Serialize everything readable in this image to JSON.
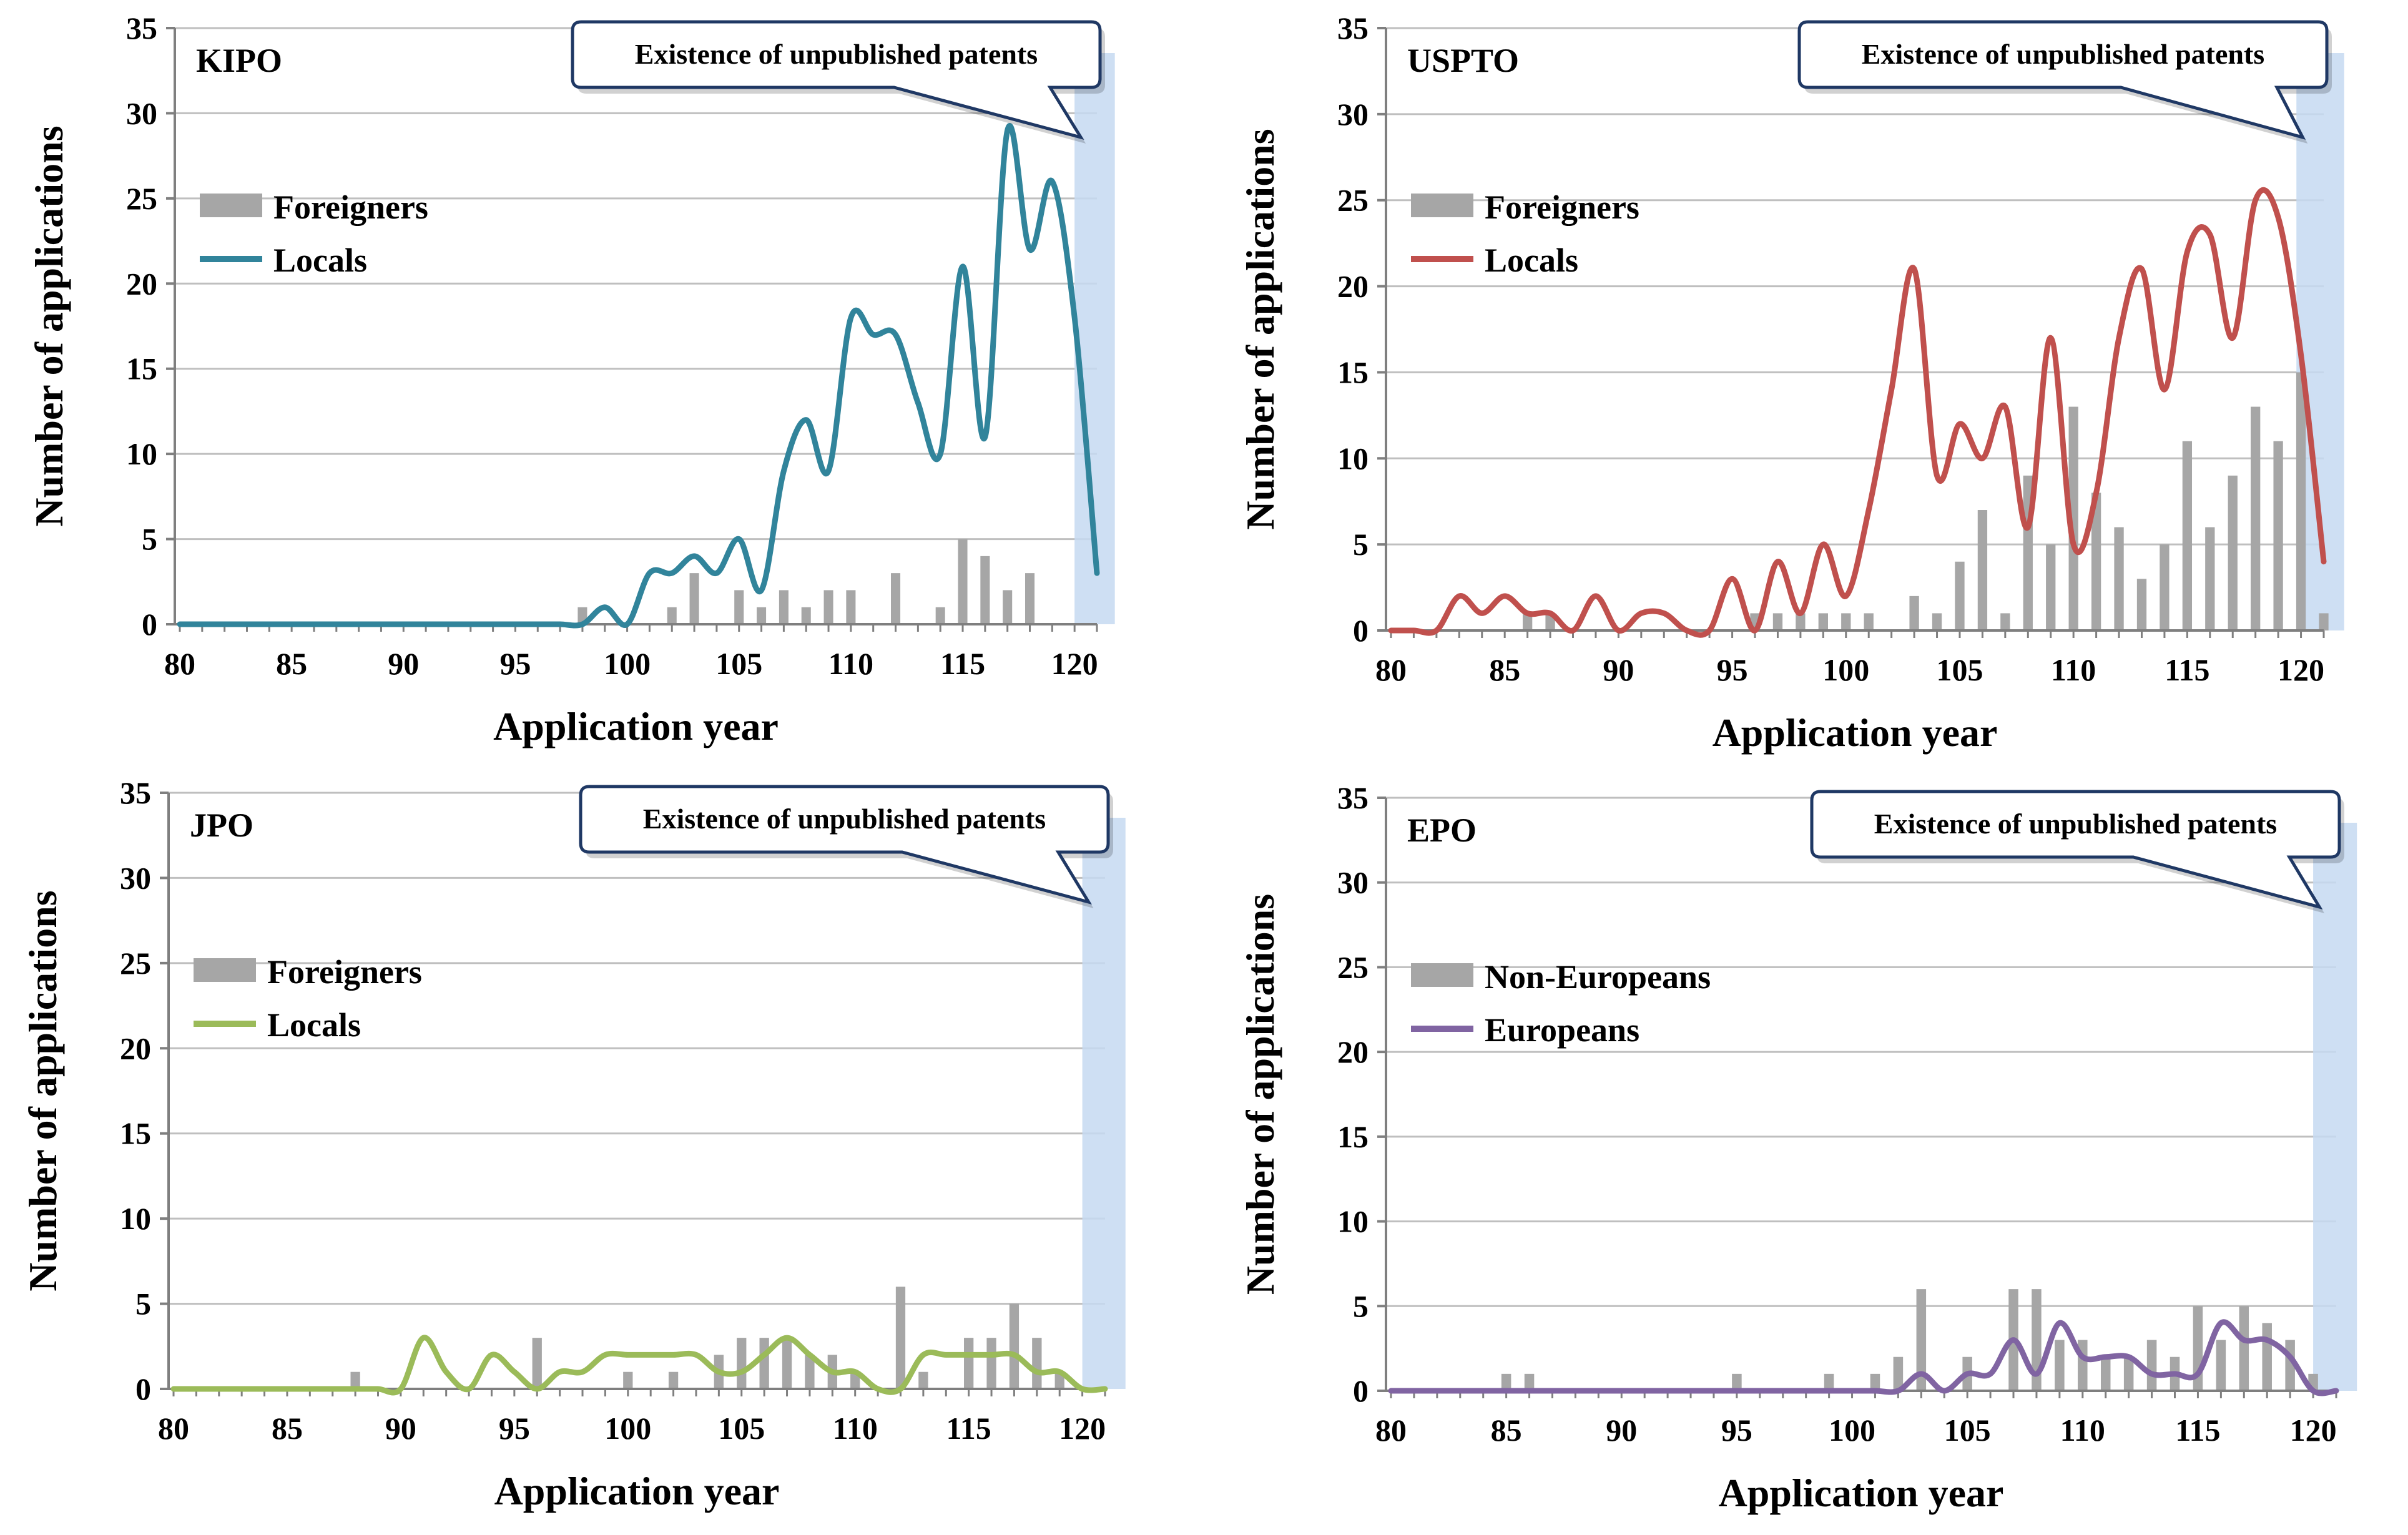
{
  "colors": {
    "foreigners_bar": "#a6a6a6",
    "grid": "#bfbfbf",
    "axis": "#7f7f7f",
    "shade": "#c6d9f1",
    "callout_border": "#1f3864",
    "kipo_line": "#31849b",
    "uspto_line": "#c0504d",
    "jpo_line": "#9bbb59",
    "epo_line": "#8064a2"
  },
  "chart_data": [
    {
      "id": "kipo",
      "type": "bar+line",
      "title": "KIPO",
      "xlabel": "Application year",
      "ylabel": "Number of applications",
      "xlim": [
        80,
        121
      ],
      "ylim": [
        0,
        35
      ],
      "yticks": [
        0,
        5,
        10,
        15,
        20,
        25,
        30,
        35
      ],
      "xticks": [
        80,
        85,
        90,
        95,
        100,
        105,
        110,
        115,
        120
      ],
      "grid": true,
      "shaded_region": [
        120,
        121.8
      ],
      "callout": "Existence of unpublished patents",
      "legend_position": "upper-left",
      "line_color": "#31849b",
      "series": [
        {
          "name": "Foreigners",
          "kind": "bar",
          "x": [
            98,
            102,
            103,
            105,
            106,
            107,
            108,
            109,
            110,
            112,
            114,
            115,
            116,
            117,
            118
          ],
          "values": [
            1,
            1,
            3,
            2,
            1,
            2,
            1,
            2,
            2,
            3,
            1,
            5,
            4,
            2,
            3
          ]
        },
        {
          "name": "Locals",
          "kind": "line",
          "x": [
            80,
            81,
            82,
            83,
            84,
            85,
            86,
            87,
            88,
            89,
            90,
            91,
            92,
            93,
            94,
            95,
            96,
            97,
            98,
            99,
            100,
            101,
            102,
            103,
            104,
            105,
            106,
            107,
            108,
            109,
            110,
            111,
            112,
            113,
            114,
            115,
            116,
            117,
            118,
            119,
            120,
            121
          ],
          "values": [
            0,
            0,
            0,
            0,
            0,
            0,
            0,
            0,
            0,
            0,
            0,
            0,
            0,
            0,
            0,
            0,
            0,
            0,
            0,
            1,
            0,
            3,
            3,
            4,
            3,
            5,
            2,
            9,
            12,
            9,
            18,
            17,
            17,
            13,
            10,
            21,
            11,
            29,
            22,
            26,
            18,
            3
          ]
        }
      ]
    },
    {
      "id": "uspto",
      "type": "bar+line",
      "title": "USPTO",
      "xlabel": "Application year",
      "ylabel": "Number of applications",
      "xlim": [
        80,
        121
      ],
      "ylim": [
        0,
        35
      ],
      "yticks": [
        0,
        5,
        10,
        15,
        20,
        25,
        30,
        35
      ],
      "xticks": [
        80,
        85,
        90,
        95,
        100,
        105,
        110,
        115,
        120
      ],
      "grid": true,
      "shaded_region": [
        119.8,
        121.9
      ],
      "callout": "Existence of unpublished patents",
      "legend_position": "upper-left",
      "line_color": "#c0504d",
      "series": [
        {
          "name": "Foreigners",
          "kind": "bar",
          "x": [
            86,
            87,
            96,
            97,
            98,
            99,
            100,
            101,
            103,
            104,
            105,
            106,
            107,
            108,
            109,
            110,
            111,
            112,
            113,
            114,
            115,
            116,
            117,
            118,
            119,
            120,
            121
          ],
          "values": [
            1,
            1,
            1,
            1,
            1,
            1,
            1,
            1,
            2,
            1,
            4,
            7,
            1,
            9,
            5,
            13,
            8,
            6,
            3,
            5,
            11,
            6,
            9,
            13,
            11,
            15,
            1
          ]
        },
        {
          "name": "Locals",
          "kind": "line",
          "x": [
            80,
            81,
            82,
            83,
            84,
            85,
            86,
            87,
            88,
            89,
            90,
            91,
            92,
            93,
            94,
            95,
            96,
            97,
            98,
            99,
            100,
            101,
            102,
            103,
            104,
            105,
            106,
            107,
            108,
            109,
            110,
            111,
            112,
            113,
            114,
            115,
            116,
            117,
            118,
            119,
            120,
            121
          ],
          "values": [
            0,
            0,
            0,
            2,
            1,
            2,
            1,
            1,
            0,
            2,
            0,
            1,
            1,
            0,
            0,
            3,
            0,
            4,
            1,
            5,
            2,
            7,
            14,
            21,
            9,
            12,
            10,
            13,
            6,
            17,
            5,
            8,
            17,
            21,
            14,
            22,
            23,
            17,
            25,
            24,
            16,
            4
          ]
        }
      ]
    },
    {
      "id": "jpo",
      "type": "bar+line",
      "title": "JPO",
      "xlabel": "Application year",
      "ylabel": "Number of applications",
      "xlim": [
        80,
        121
      ],
      "ylim": [
        0,
        35
      ],
      "yticks": [
        0,
        5,
        10,
        15,
        20,
        25,
        30,
        35
      ],
      "xticks": [
        80,
        85,
        90,
        95,
        100,
        105,
        110,
        115,
        120
      ],
      "grid": true,
      "shaded_region": [
        120,
        121.9
      ],
      "callout": "Existence of unpublished patents",
      "legend_position": "upper-left",
      "line_color": "#9bbb59",
      "series": [
        {
          "name": "Foreigners",
          "kind": "bar",
          "x": [
            88,
            96,
            100,
            102,
            104,
            105,
            106,
            107,
            108,
            109,
            110,
            112,
            113,
            115,
            116,
            117,
            118,
            119
          ],
          "values": [
            1,
            3,
            1,
            1,
            2,
            3,
            3,
            3,
            2,
            2,
            1,
            6,
            1,
            3,
            3,
            5,
            3,
            1
          ]
        },
        {
          "name": "Locals",
          "kind": "line",
          "x": [
            80,
            81,
            82,
            83,
            84,
            85,
            86,
            87,
            88,
            89,
            90,
            91,
            92,
            93,
            94,
            95,
            96,
            97,
            98,
            99,
            100,
            101,
            102,
            103,
            104,
            105,
            106,
            107,
            108,
            109,
            110,
            111,
            112,
            113,
            114,
            115,
            116,
            117,
            118,
            119,
            120,
            121
          ],
          "values": [
            0,
            0,
            0,
            0,
            0,
            0,
            0,
            0,
            0,
            0,
            0,
            3,
            1,
            0,
            2,
            1,
            0,
            1,
            1,
            2,
            2,
            2,
            2,
            2,
            1,
            1,
            2,
            3,
            2,
            1,
            1,
            0,
            0,
            2,
            2,
            2,
            2,
            2,
            1,
            1,
            0,
            0
          ]
        }
      ]
    },
    {
      "id": "epo",
      "type": "bar+line",
      "title": "EPO",
      "xlabel": "Application year",
      "ylabel": "Number of applications",
      "xlim": [
        80,
        121
      ],
      "ylim": [
        0,
        35
      ],
      "yticks": [
        0,
        5,
        10,
        15,
        20,
        25,
        30,
        35
      ],
      "xticks": [
        80,
        85,
        90,
        95,
        100,
        105,
        110,
        115,
        120
      ],
      "grid": true,
      "shaded_region": [
        120,
        121.9
      ],
      "callout": "Existence of unpublished patents",
      "legend_position": "upper-left",
      "line_color": "#8064a2",
      "series": [
        {
          "name": "Non-Europeans",
          "kind": "bar",
          "x": [
            85,
            86,
            95,
            99,
            101,
            102,
            103,
            105,
            107,
            108,
            109,
            110,
            111,
            112,
            113,
            114,
            115,
            116,
            117,
            118,
            119,
            120
          ],
          "values": [
            1,
            1,
            1,
            1,
            1,
            2,
            6,
            2,
            6,
            6,
            3,
            3,
            2,
            2,
            3,
            2,
            5,
            3,
            5,
            4,
            3,
            1
          ]
        },
        {
          "name": "Europeans",
          "kind": "line",
          "x": [
            80,
            81,
            82,
            83,
            84,
            85,
            86,
            87,
            88,
            89,
            90,
            91,
            92,
            93,
            94,
            95,
            96,
            97,
            98,
            99,
            100,
            101,
            102,
            103,
            104,
            105,
            106,
            107,
            108,
            109,
            110,
            111,
            112,
            113,
            114,
            115,
            116,
            117,
            118,
            119,
            120,
            121
          ],
          "values": [
            0,
            0,
            0,
            0,
            0,
            0,
            0,
            0,
            0,
            0,
            0,
            0,
            0,
            0,
            0,
            0,
            0,
            0,
            0,
            0,
            0,
            0,
            0,
            1,
            0,
            1,
            1,
            3,
            1,
            4,
            2,
            2,
            2,
            1,
            1,
            1,
            4,
            3,
            3,
            2,
            0,
            0
          ]
        }
      ]
    }
  ]
}
